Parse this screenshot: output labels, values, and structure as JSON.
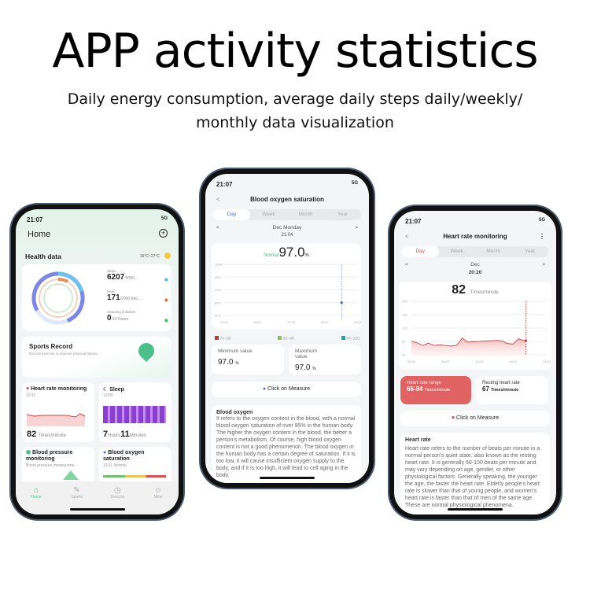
{
  "headline": "APP activity statistics",
  "subtitle_lines": [
    "Daily energy consumption, average daily steps daily/weekly/",
    "monthly data visualization"
  ],
  "home": {
    "time": "21:07",
    "network": "5G",
    "title": "Home",
    "health_label": "Health data",
    "weather": "16°C~27°C",
    "stats": [
      {
        "label": "Steps",
        "value": "6207",
        "unit": "/6000...",
        "icon": "walking-icon",
        "color": "#5aa7e8"
      },
      {
        "label": "Heat",
        "value": "171",
        "unit": "/2000 Kilo...",
        "icon": "flame-icon",
        "color": "#e8653f"
      },
      {
        "label": "Standing activities",
        "value": "0",
        "unit": "/10 Hours",
        "icon": "standing-icon",
        "color": "#4caf50"
      }
    ],
    "rings": {
      "steps_progress": 1.0,
      "heat_progress": 0.085,
      "standing_progress": 0
    },
    "sports": {
      "title": "Sports Record",
      "desc": "Record exercise to improve physical fitness"
    },
    "heart": {
      "title": "Heart rate monitoring",
      "date": "12/11",
      "value": "82",
      "unit": "Times/minute"
    },
    "sleep": {
      "title": "Sleep",
      "date": "12/09",
      "hours": "7",
      "hours_unit": "Hours",
      "minutes": "11",
      "minutes_unit": "Minutes"
    },
    "bp": {
      "title": "Blood pressure monitoring",
      "desc": "Blood pressure measureme..."
    },
    "oxy": {
      "title": "Blood oxygen saturation",
      "date": "12/11 Normal"
    },
    "nav": [
      "Home",
      "Sports",
      "Devices",
      "Mine"
    ]
  },
  "oxygen": {
    "time": "21:07",
    "network": "5G",
    "title": "Blood oxygen saturation",
    "tabs": [
      "Day",
      "Week",
      "Month",
      "Year"
    ],
    "date": "Dec Monday",
    "sample_time": "21:04",
    "status": "Normal",
    "value": "97.0",
    "unit": "%",
    "y_ticks": [
      "100%",
      "95%",
      "90%",
      "85%",
      "80%"
    ],
    "x_ticks": [
      "00:00",
      "06:00",
      "12:00",
      "18:00",
      "24:00"
    ],
    "legend": [
      {
        "label": "70~90",
        "color": "#c0392b"
      },
      {
        "label": "90~94",
        "color": "#8bc34a"
      },
      {
        "label": "94~100",
        "color": "#26a69a"
      }
    ],
    "min_label": "Minimum value",
    "min": "97.0",
    "max_label": "Maximum value",
    "max": "97.0",
    "pct": "%",
    "measure": "Click on Measure",
    "info_title": "Blood oxygen",
    "info": "It refers to the oxygen content in the blood, with a normal blood oxygen saturation of over 95% in the human body. The higher the oxygen content in the blood, the better a person's metabolism. Of course, high blood oxygen content is not a good phenomenon. The blood oxygen in the human body has a certain degree of saturation. If it is too low, it will cause insufficient oxygen supply to the body, and if it is too high, it will lead to cell aging in the body."
  },
  "heartrate": {
    "time": "21:07",
    "network": "5G",
    "title": "Heart rate monitoring",
    "tabs": [
      "Day",
      "Week",
      "Month",
      "Year"
    ],
    "date": "Dec",
    "sample_time": "20:20",
    "value": "82",
    "unit": "Times/minute",
    "y_ticks": [
      "200",
      "160",
      "120",
      "80",
      "40"
    ],
    "x_ticks": [
      "00:00",
      "06:00",
      "12:00",
      "18:00",
      "24:00"
    ],
    "chart_data": {
      "type": "area",
      "x_hours": [
        0,
        1,
        2,
        3,
        4,
        5,
        6,
        7,
        8,
        9,
        10,
        11,
        12,
        13,
        14,
        15,
        16,
        17,
        18,
        18.5,
        19,
        19.5,
        20.3
      ],
      "values": [
        80,
        76,
        68,
        75,
        68,
        70,
        68,
        66,
        68,
        90,
        78,
        79,
        80,
        81,
        82,
        83,
        82,
        74,
        72,
        80,
        88,
        85,
        82
      ],
      "ylim": [
        0,
        200
      ],
      "xlim": [
        0,
        24
      ]
    },
    "range_label": "Heart rate range",
    "range": "66-94",
    "range_unit": "Times/minute",
    "resting_label": "Resting heart rate",
    "resting": "67",
    "resting_unit": "Times/minute",
    "measure": "Click on Measure",
    "info_title": "Heart rate",
    "info": "Heart rate refers to the number of beats per minute in a normal person's quiet state, also known as the resting heart rate. It is generally 60-100 beats per minute and may vary depending on age, gender, or other physiological factors. Generally speaking, the younger the age, the faster the heart rate. Elderly people's heart rate is slower than that of young people, and women's heart rate is faster than that of men of the same age. These are normal physiological phenomena."
  }
}
